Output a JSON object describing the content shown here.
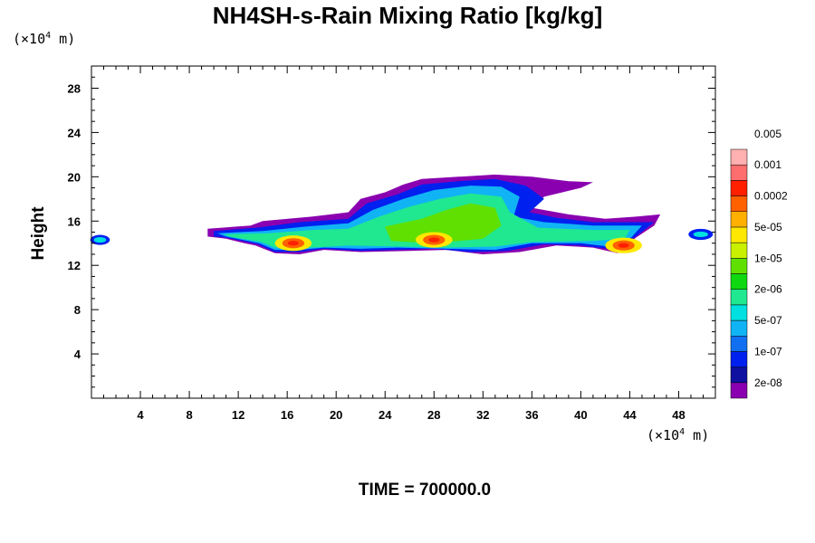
{
  "title": "NH4SH-s-Rain Mixing Ratio [kg/kg]",
  "y_unit": {
    "prefix": "(×10",
    "exp": "4",
    "suffix": " m)"
  },
  "x_unit": {
    "prefix": "(×10",
    "exp": "4",
    "suffix": " m)"
  },
  "ylabel": "Height",
  "time_label": "TIME = 700000.0",
  "chart_data": {
    "type": "heatmap",
    "title": "NH4SH-s-Rain Mixing Ratio [kg/kg]",
    "xlabel": "",
    "ylabel": "Height",
    "x_unit": "×10^4 m",
    "y_unit": "×10^4 m",
    "xlim": [
      0,
      51
    ],
    "ylim": [
      0,
      30
    ],
    "x_ticks": [
      4,
      8,
      12,
      16,
      20,
      24,
      28,
      32,
      36,
      40,
      44,
      48
    ],
    "y_ticks": [
      4,
      8,
      12,
      16,
      20,
      24,
      28
    ],
    "colorbar": {
      "levels": [
        "2e-08",
        "1e-07",
        "5e-07",
        "2e-06",
        "1e-05",
        "5e-05",
        "0.0002",
        "0.001",
        "0.005"
      ],
      "colors": [
        "#8a00b0",
        "#1010a0",
        "#0020f0",
        "#1070f0",
        "#10b4f4",
        "#00e0e0",
        "#20e890",
        "#10d810",
        "#60e000",
        "#c8f000",
        "#ffe800",
        "#ffb000",
        "#ff6000",
        "#ff2000",
        "#ff6e6e",
        "#ffb0b0"
      ]
    },
    "regions": [
      {
        "type": "main-cloud",
        "x": [
          10,
          47
        ],
        "y": [
          13,
          20
        ],
        "peak": "0.001"
      },
      {
        "type": "hot-spot",
        "x": 16.5,
        "y": 14.0,
        "level": "0.001"
      },
      {
        "type": "hot-spot",
        "x": 28.0,
        "y": 14.3,
        "level": "0.001"
      },
      {
        "type": "hot-spot",
        "x": 43.5,
        "y": 13.8,
        "level": "0.001"
      },
      {
        "type": "patch",
        "x": 0.7,
        "y": 14.3,
        "level": "2e-06"
      },
      {
        "type": "patch",
        "x": 49.8,
        "y": 14.8,
        "level": "2e-06"
      }
    ]
  }
}
